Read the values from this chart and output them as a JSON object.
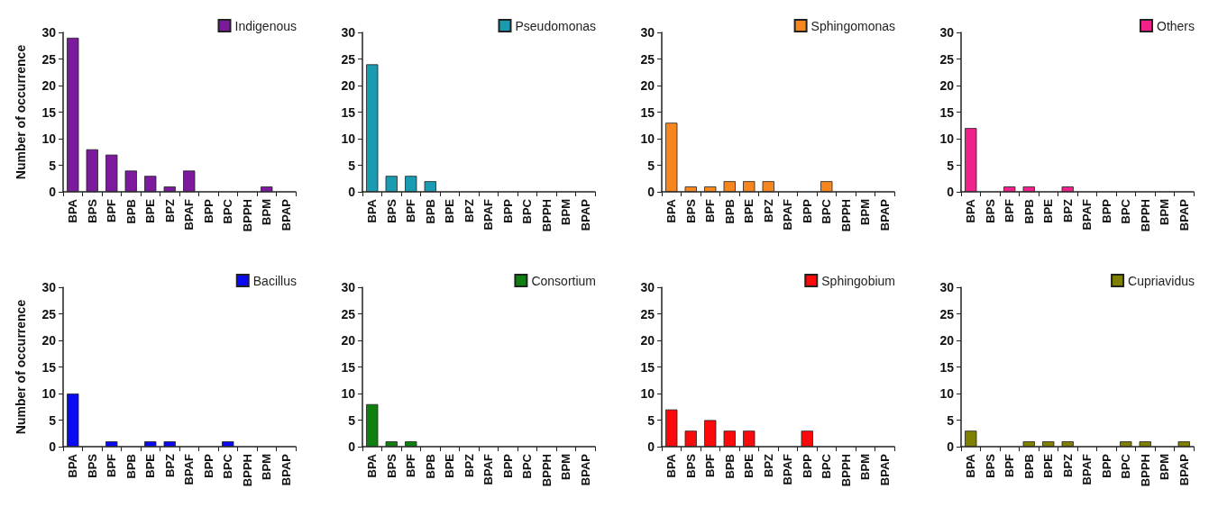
{
  "chart_data": [
    {
      "type": "bar",
      "ylabel": "Number of occurrence",
      "categories": [
        "BPA",
        "BPS",
        "BPF",
        "BPB",
        "BPE",
        "BPZ",
        "BPAF",
        "BPP",
        "BPC",
        "BPPH",
        "BPM",
        "BPAP"
      ],
      "series": [
        {
          "name": "Indigenous",
          "color": "#7b1a9c",
          "values": [
            29,
            8,
            7,
            4,
            3,
            1,
            4,
            0,
            0,
            0,
            1,
            0
          ]
        }
      ],
      "ylim": [
        0,
        30
      ],
      "yticks": [
        0,
        5,
        10,
        15,
        20,
        25,
        30
      ],
      "legend": "top right",
      "grid": false
    },
    {
      "type": "bar",
      "categories": [
        "BPA",
        "BPS",
        "BPF",
        "BPB",
        "BPE",
        "BPZ",
        "BPAF",
        "BPP",
        "BPC",
        "BPPH",
        "BPM",
        "BPAP"
      ],
      "series": [
        {
          "name": "Pseudomonas",
          "color": "#1a9bb2",
          "values": [
            24,
            3,
            3,
            2,
            0,
            0,
            0,
            0,
            0,
            0,
            0,
            0
          ]
        }
      ],
      "ylim": [
        0,
        30
      ],
      "yticks": [
        0,
        5,
        10,
        15,
        20,
        25,
        30
      ],
      "legend": "top right",
      "grid": false
    },
    {
      "type": "bar",
      "categories": [
        "BPA",
        "BPS",
        "BPF",
        "BPB",
        "BPE",
        "BPZ",
        "BPAF",
        "BPP",
        "BPC",
        "BPPH",
        "BPM",
        "BPAP"
      ],
      "series": [
        {
          "name": "Sphingomonas",
          "color": "#f7861e",
          "values": [
            13,
            1,
            1,
            2,
            2,
            2,
            0,
            0,
            2,
            0,
            0,
            0
          ]
        }
      ],
      "ylim": [
        0,
        30
      ],
      "yticks": [
        0,
        5,
        10,
        15,
        20,
        25,
        30
      ],
      "legend": "top right",
      "grid": false
    },
    {
      "type": "bar",
      "categories": [
        "BPA",
        "BPS",
        "BPF",
        "BPB",
        "BPE",
        "BPZ",
        "BPAF",
        "BPP",
        "BPC",
        "BPPH",
        "BPM",
        "BPAP"
      ],
      "series": [
        {
          "name": "Others",
          "color": "#f0228a",
          "values": [
            12,
            0,
            1,
            1,
            0,
            1,
            0,
            0,
            0,
            0,
            0,
            0
          ]
        }
      ],
      "ylim": [
        0,
        30
      ],
      "yticks": [
        0,
        5,
        10,
        15,
        20,
        25,
        30
      ],
      "legend": "top right",
      "grid": false
    },
    {
      "type": "bar",
      "ylabel": "Number of occurrence",
      "categories": [
        "BPA",
        "BPS",
        "BPF",
        "BPB",
        "BPE",
        "BPZ",
        "BPAF",
        "BPP",
        "BPC",
        "BPPH",
        "BPM",
        "BPAP"
      ],
      "series": [
        {
          "name": "Bacillus",
          "color": "#0a0af5",
          "values": [
            10,
            0,
            1,
            0,
            1,
            1,
            0,
            0,
            1,
            0,
            0,
            0
          ]
        }
      ],
      "ylim": [
        0,
        30
      ],
      "yticks": [
        0,
        5,
        10,
        15,
        20,
        25,
        30
      ],
      "legend": "top right",
      "grid": false
    },
    {
      "type": "bar",
      "categories": [
        "BPA",
        "BPS",
        "BPF",
        "BPB",
        "BPE",
        "BPZ",
        "BPAF",
        "BPP",
        "BPC",
        "BPPH",
        "BPM",
        "BPAP"
      ],
      "series": [
        {
          "name": "Consortium",
          "color": "#0f800f",
          "values": [
            8,
            1,
            1,
            0,
            0,
            0,
            0,
            0,
            0,
            0,
            0,
            0
          ]
        }
      ],
      "ylim": [
        0,
        30
      ],
      "yticks": [
        0,
        5,
        10,
        15,
        20,
        25,
        30
      ],
      "legend": "top right",
      "grid": false
    },
    {
      "type": "bar",
      "categories": [
        "BPA",
        "BPS",
        "BPF",
        "BPB",
        "BPE",
        "BPZ",
        "BPAF",
        "BPP",
        "BPC",
        "BPPH",
        "BPM",
        "BPAP"
      ],
      "series": [
        {
          "name": "Sphingobium",
          "color": "#fa0a0a",
          "values": [
            7,
            3,
            5,
            3,
            3,
            0,
            0,
            3,
            0,
            0,
            0,
            0
          ]
        }
      ],
      "ylim": [
        0,
        30
      ],
      "yticks": [
        0,
        5,
        10,
        15,
        20,
        25,
        30
      ],
      "legend": "top right",
      "grid": false
    },
    {
      "type": "bar",
      "categories": [
        "BPA",
        "BPS",
        "BPF",
        "BPB",
        "BPE",
        "BPZ",
        "BPAF",
        "BPP",
        "BPC",
        "BPPH",
        "BPM",
        "BPAP"
      ],
      "series": [
        {
          "name": "Cupriavidus",
          "color": "#7f7f00",
          "values": [
            3,
            0,
            0,
            1,
            1,
            1,
            0,
            0,
            1,
            1,
            0,
            1
          ]
        }
      ],
      "ylim": [
        0,
        30
      ],
      "yticks": [
        0,
        5,
        10,
        15,
        20,
        25,
        30
      ],
      "legend": "top right",
      "grid": false
    }
  ]
}
